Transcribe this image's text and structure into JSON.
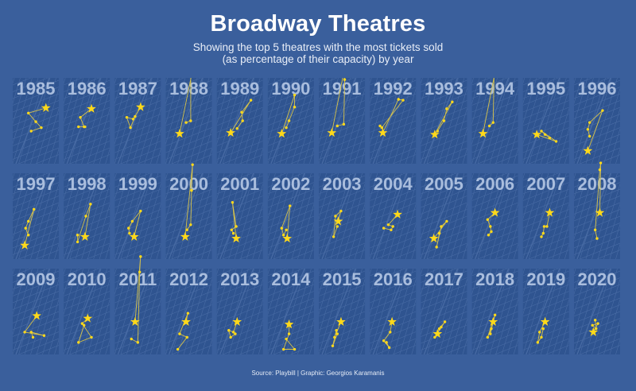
{
  "title": "Broadway Theatres",
  "subtitle": [
    "Showing the top 5 theatres with the most tickets sold",
    "(as percentage of their capacity) by year"
  ],
  "source": "Source: Playbill | Graphic: Georgios Karamanis",
  "colors": {
    "background": "#3a5f9c",
    "panel": "#2f5490",
    "street": "#5e7fb6",
    "year_label": "#a9bddd",
    "marker": "#ffd91a",
    "connector": "#d6c24a"
  },
  "chart_data": {
    "type": "scatter",
    "title": "Broadway Theatres",
    "layout": "small multiples, 12 columns x 3 rows",
    "marker_legend": "star = top theatre, dots = theatres ranked 2-5",
    "years": [
      {
        "year": "1985",
        "points": [
          [
            0.72,
            0.35
          ],
          [
            0.34,
            0.41
          ],
          [
            0.5,
            0.51
          ],
          [
            0.62,
            0.58
          ],
          [
            0.4,
            0.62
          ]
        ]
      },
      {
        "year": "1986",
        "points": [
          [
            0.6,
            0.36
          ],
          [
            0.36,
            0.46
          ],
          [
            0.44,
            0.57
          ],
          [
            0.32,
            0.57
          ],
          [
            0.46,
            0.57
          ]
        ]
      },
      {
        "year": "1987",
        "points": [
          [
            0.56,
            0.34
          ],
          [
            0.4,
            0.48
          ],
          [
            0.26,
            0.46
          ],
          [
            0.34,
            0.58
          ],
          [
            0.44,
            0.45
          ]
        ]
      },
      {
        "year": "1988",
        "points": [
          [
            0.3,
            0.65
          ],
          [
            0.6,
            -0.14
          ],
          [
            0.54,
            -0.1
          ],
          [
            0.54,
            0.5
          ],
          [
            0.44,
            0.52
          ]
        ]
      },
      {
        "year": "1989",
        "points": [
          [
            0.3,
            0.64
          ],
          [
            0.74,
            0.26
          ],
          [
            0.54,
            0.4
          ],
          [
            0.56,
            0.5
          ],
          [
            0.44,
            0.59
          ]
        ]
      },
      {
        "year": "1990",
        "points": [
          [
            0.3,
            0.65
          ],
          [
            0.58,
            0.2
          ],
          [
            0.58,
            0.34
          ],
          [
            0.46,
            0.5
          ],
          [
            0.4,
            0.58
          ]
        ]
      },
      {
        "year": "1991",
        "points": [
          [
            0.28,
            0.64
          ],
          [
            0.56,
            -0.12
          ],
          [
            0.56,
            0.02
          ],
          [
            0.54,
            0.54
          ],
          [
            0.4,
            0.56
          ]
        ]
      },
      {
        "year": "1992",
        "points": [
          [
            0.28,
            0.64
          ],
          [
            0.62,
            0.25
          ],
          [
            0.72,
            0.26
          ],
          [
            0.26,
            0.58
          ],
          [
            0.22,
            0.56
          ]
        ]
      },
      {
        "year": "1993",
        "points": [
          [
            0.3,
            0.66
          ],
          [
            0.68,
            0.28
          ],
          [
            0.56,
            0.36
          ],
          [
            0.5,
            0.5
          ],
          [
            0.36,
            0.62
          ]
        ]
      },
      {
        "year": "1994",
        "points": [
          [
            0.24,
            0.65
          ],
          [
            0.52,
            -0.12
          ],
          [
            0.48,
            -0.06
          ],
          [
            0.46,
            0.52
          ],
          [
            0.38,
            0.56
          ]
        ]
      },
      {
        "year": "1995",
        "points": [
          [
            0.3,
            0.66
          ],
          [
            0.72,
            0.74
          ],
          [
            0.4,
            0.62
          ],
          [
            0.48,
            0.66
          ],
          [
            0.58,
            0.7
          ]
        ]
      },
      {
        "year": "1996",
        "points": [
          [
            0.3,
            0.85
          ],
          [
            0.62,
            0.38
          ],
          [
            0.34,
            0.52
          ],
          [
            0.3,
            0.6
          ],
          [
            0.34,
            0.68
          ]
        ]
      },
      {
        "year": "1997",
        "points": [
          [
            0.26,
            0.84
          ],
          [
            0.46,
            0.42
          ],
          [
            0.34,
            0.56
          ],
          [
            0.28,
            0.64
          ],
          [
            0.34,
            0.72
          ]
        ]
      },
      {
        "year": "1998",
        "points": [
          [
            0.46,
            0.74
          ],
          [
            0.58,
            0.36
          ],
          [
            0.48,
            0.5
          ],
          [
            0.3,
            0.8
          ],
          [
            0.3,
            0.72
          ]
        ]
      },
      {
        "year": "1999",
        "points": [
          [
            0.42,
            0.74
          ],
          [
            0.56,
            0.44
          ],
          [
            0.38,
            0.56
          ],
          [
            0.3,
            0.64
          ],
          [
            0.32,
            0.7
          ]
        ]
      },
      {
        "year": "2000",
        "points": [
          [
            0.42,
            0.74
          ],
          [
            0.58,
            -0.1
          ],
          [
            0.56,
            0.2
          ],
          [
            0.54,
            0.6
          ],
          [
            0.46,
            0.66
          ]
        ]
      },
      {
        "year": "2001",
        "points": [
          [
            0.42,
            0.76
          ],
          [
            0.34,
            0.34
          ],
          [
            0.42,
            0.62
          ],
          [
            0.32,
            0.66
          ],
          [
            0.36,
            0.7
          ]
        ]
      },
      {
        "year": "2002",
        "points": [
          [
            0.42,
            0.76
          ],
          [
            0.48,
            0.38
          ],
          [
            0.3,
            0.64
          ],
          [
            0.34,
            0.72
          ],
          [
            0.4,
            0.66
          ]
        ]
      },
      {
        "year": "2003",
        "points": [
          [
            0.42,
            0.56
          ],
          [
            0.48,
            0.44
          ],
          [
            0.36,
            0.5
          ],
          [
            0.32,
            0.74
          ],
          [
            0.4,
            0.62
          ]
        ]
      },
      {
        "year": "2004",
        "points": [
          [
            0.6,
            0.48
          ],
          [
            0.4,
            0.6
          ],
          [
            0.5,
            0.62
          ],
          [
            0.46,
            0.66
          ],
          [
            0.3,
            0.64
          ]
        ]
      },
      {
        "year": "2005",
        "points": [
          [
            0.28,
            0.76
          ],
          [
            0.56,
            0.56
          ],
          [
            0.44,
            0.62
          ],
          [
            0.34,
            0.86
          ],
          [
            0.4,
            0.7
          ]
        ]
      },
      {
        "year": "2006",
        "points": [
          [
            0.5,
            0.46
          ],
          [
            0.34,
            0.54
          ],
          [
            0.4,
            0.62
          ],
          [
            0.42,
            0.68
          ],
          [
            0.36,
            0.72
          ]
        ]
      },
      {
        "year": "2007",
        "points": [
          [
            0.58,
            0.46
          ],
          [
            0.52,
            0.62
          ],
          [
            0.46,
            0.62
          ],
          [
            0.44,
            0.7
          ],
          [
            0.4,
            0.74
          ]
        ]
      },
      {
        "year": "2008",
        "points": [
          [
            0.56,
            0.46
          ],
          [
            0.58,
            -0.12
          ],
          [
            0.56,
            -0.04
          ],
          [
            0.46,
            0.66
          ],
          [
            0.5,
            0.76
          ]
        ]
      },
      {
        "year": "2009",
        "points": [
          [
            0.52,
            0.55
          ],
          [
            0.26,
            0.74
          ],
          [
            0.68,
            0.78
          ],
          [
            0.4,
            0.74
          ],
          [
            0.44,
            0.8
          ]
        ]
      },
      {
        "year": "2010",
        "points": [
          [
            0.52,
            0.58
          ],
          [
            0.4,
            0.64
          ],
          [
            0.6,
            0.8
          ],
          [
            0.32,
            0.86
          ],
          [
            0.44,
            0.66
          ]
        ]
      },
      {
        "year": "2011",
        "points": [
          [
            0.44,
            0.62
          ],
          [
            0.56,
            -0.14
          ],
          [
            0.54,
            0.04
          ],
          [
            0.5,
            0.86
          ],
          [
            0.36,
            0.82
          ]
        ]
      },
      {
        "year": "2012",
        "points": [
          [
            0.44,
            0.62
          ],
          [
            0.48,
            0.52
          ],
          [
            0.3,
            0.76
          ],
          [
            0.46,
            0.8
          ],
          [
            0.26,
            0.94
          ]
        ]
      },
      {
        "year": "2013",
        "points": [
          [
            0.44,
            0.62
          ],
          [
            0.36,
            0.74
          ],
          [
            0.26,
            0.72
          ],
          [
            0.3,
            0.8
          ],
          [
            0.4,
            0.76
          ]
        ]
      },
      {
        "year": "2014",
        "points": [
          [
            0.46,
            0.65
          ],
          [
            0.46,
            0.76
          ],
          [
            0.34,
            0.94
          ],
          [
            0.58,
            0.94
          ],
          [
            0.4,
            0.82
          ]
        ]
      },
      {
        "year": "2015",
        "points": [
          [
            0.48,
            0.62
          ],
          [
            0.34,
            0.8
          ],
          [
            0.38,
            0.72
          ],
          [
            0.3,
            0.9
          ],
          [
            0.4,
            0.76
          ]
        ]
      },
      {
        "year": "2016",
        "points": [
          [
            0.48,
            0.62
          ],
          [
            0.44,
            0.74
          ],
          [
            0.3,
            0.84
          ],
          [
            0.42,
            0.92
          ],
          [
            0.36,
            0.86
          ]
        ]
      },
      {
        "year": "2017",
        "points": [
          [
            0.36,
            0.76
          ],
          [
            0.4,
            0.7
          ],
          [
            0.52,
            0.62
          ],
          [
            0.3,
            0.8
          ],
          [
            0.44,
            0.68
          ]
        ]
      },
      {
        "year": "2018",
        "points": [
          [
            0.46,
            0.62
          ],
          [
            0.4,
            0.76
          ],
          [
            0.5,
            0.54
          ],
          [
            0.34,
            0.8
          ],
          [
            0.42,
            0.7
          ]
        ]
      },
      {
        "year": "2019",
        "points": [
          [
            0.48,
            0.62
          ],
          [
            0.36,
            0.74
          ],
          [
            0.32,
            0.86
          ],
          [
            0.4,
            0.8
          ],
          [
            0.44,
            0.7
          ]
        ]
      },
      {
        "year": "2020",
        "points": [
          [
            0.42,
            0.74
          ],
          [
            0.52,
            0.64
          ],
          [
            0.4,
            0.66
          ],
          [
            0.48,
            0.7
          ],
          [
            0.46,
            0.6
          ]
        ]
      }
    ]
  }
}
